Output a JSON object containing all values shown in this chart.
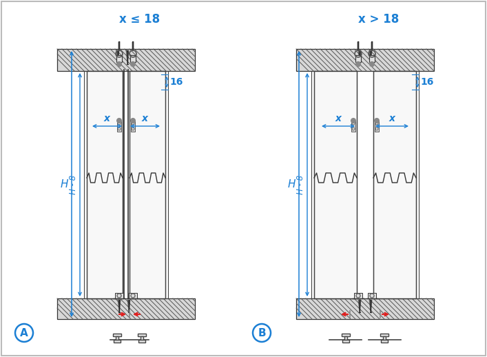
{
  "title_left": "x ≤ 18",
  "title_right": "x > 18",
  "label_A": "A",
  "label_B": "B",
  "label_H": "H",
  "label_H8": "H - 8",
  "label_16": "16",
  "label_x": "x",
  "blue": "#1b7fd4",
  "red": "#e02020",
  "black": "#222222",
  "dark_gray": "#444444",
  "med_gray": "#777777",
  "light_gray": "#cccccc",
  "hatch_bg": "#d4d4d4",
  "panel_color": "#f8f8f8",
  "bg": "#ffffff",
  "border_color": "#aaaaaa",
  "title_fontsize": 12,
  "dim_fontsize": 10,
  "label_fontsize": 11
}
